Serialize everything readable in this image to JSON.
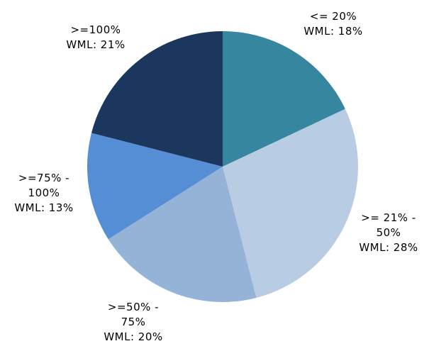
{
  "chart_data": {
    "type": "pie",
    "categories": [
      "<= 20%",
      ">= 21% - 50%",
      ">=50% - 75%",
      ">=75% - 100%",
      ">=100%"
    ],
    "values": [
      18,
      28,
      20,
      13,
      21
    ],
    "value_labels": [
      "WML: 18%",
      "WML: 28%",
      "WML: 20%",
      "WML: 13%",
      "WML: 21%"
    ],
    "colors": [
      "#35869e",
      "#b8cce4",
      "#95b3d7",
      "#558ed5",
      "#1b375e"
    ]
  }
}
